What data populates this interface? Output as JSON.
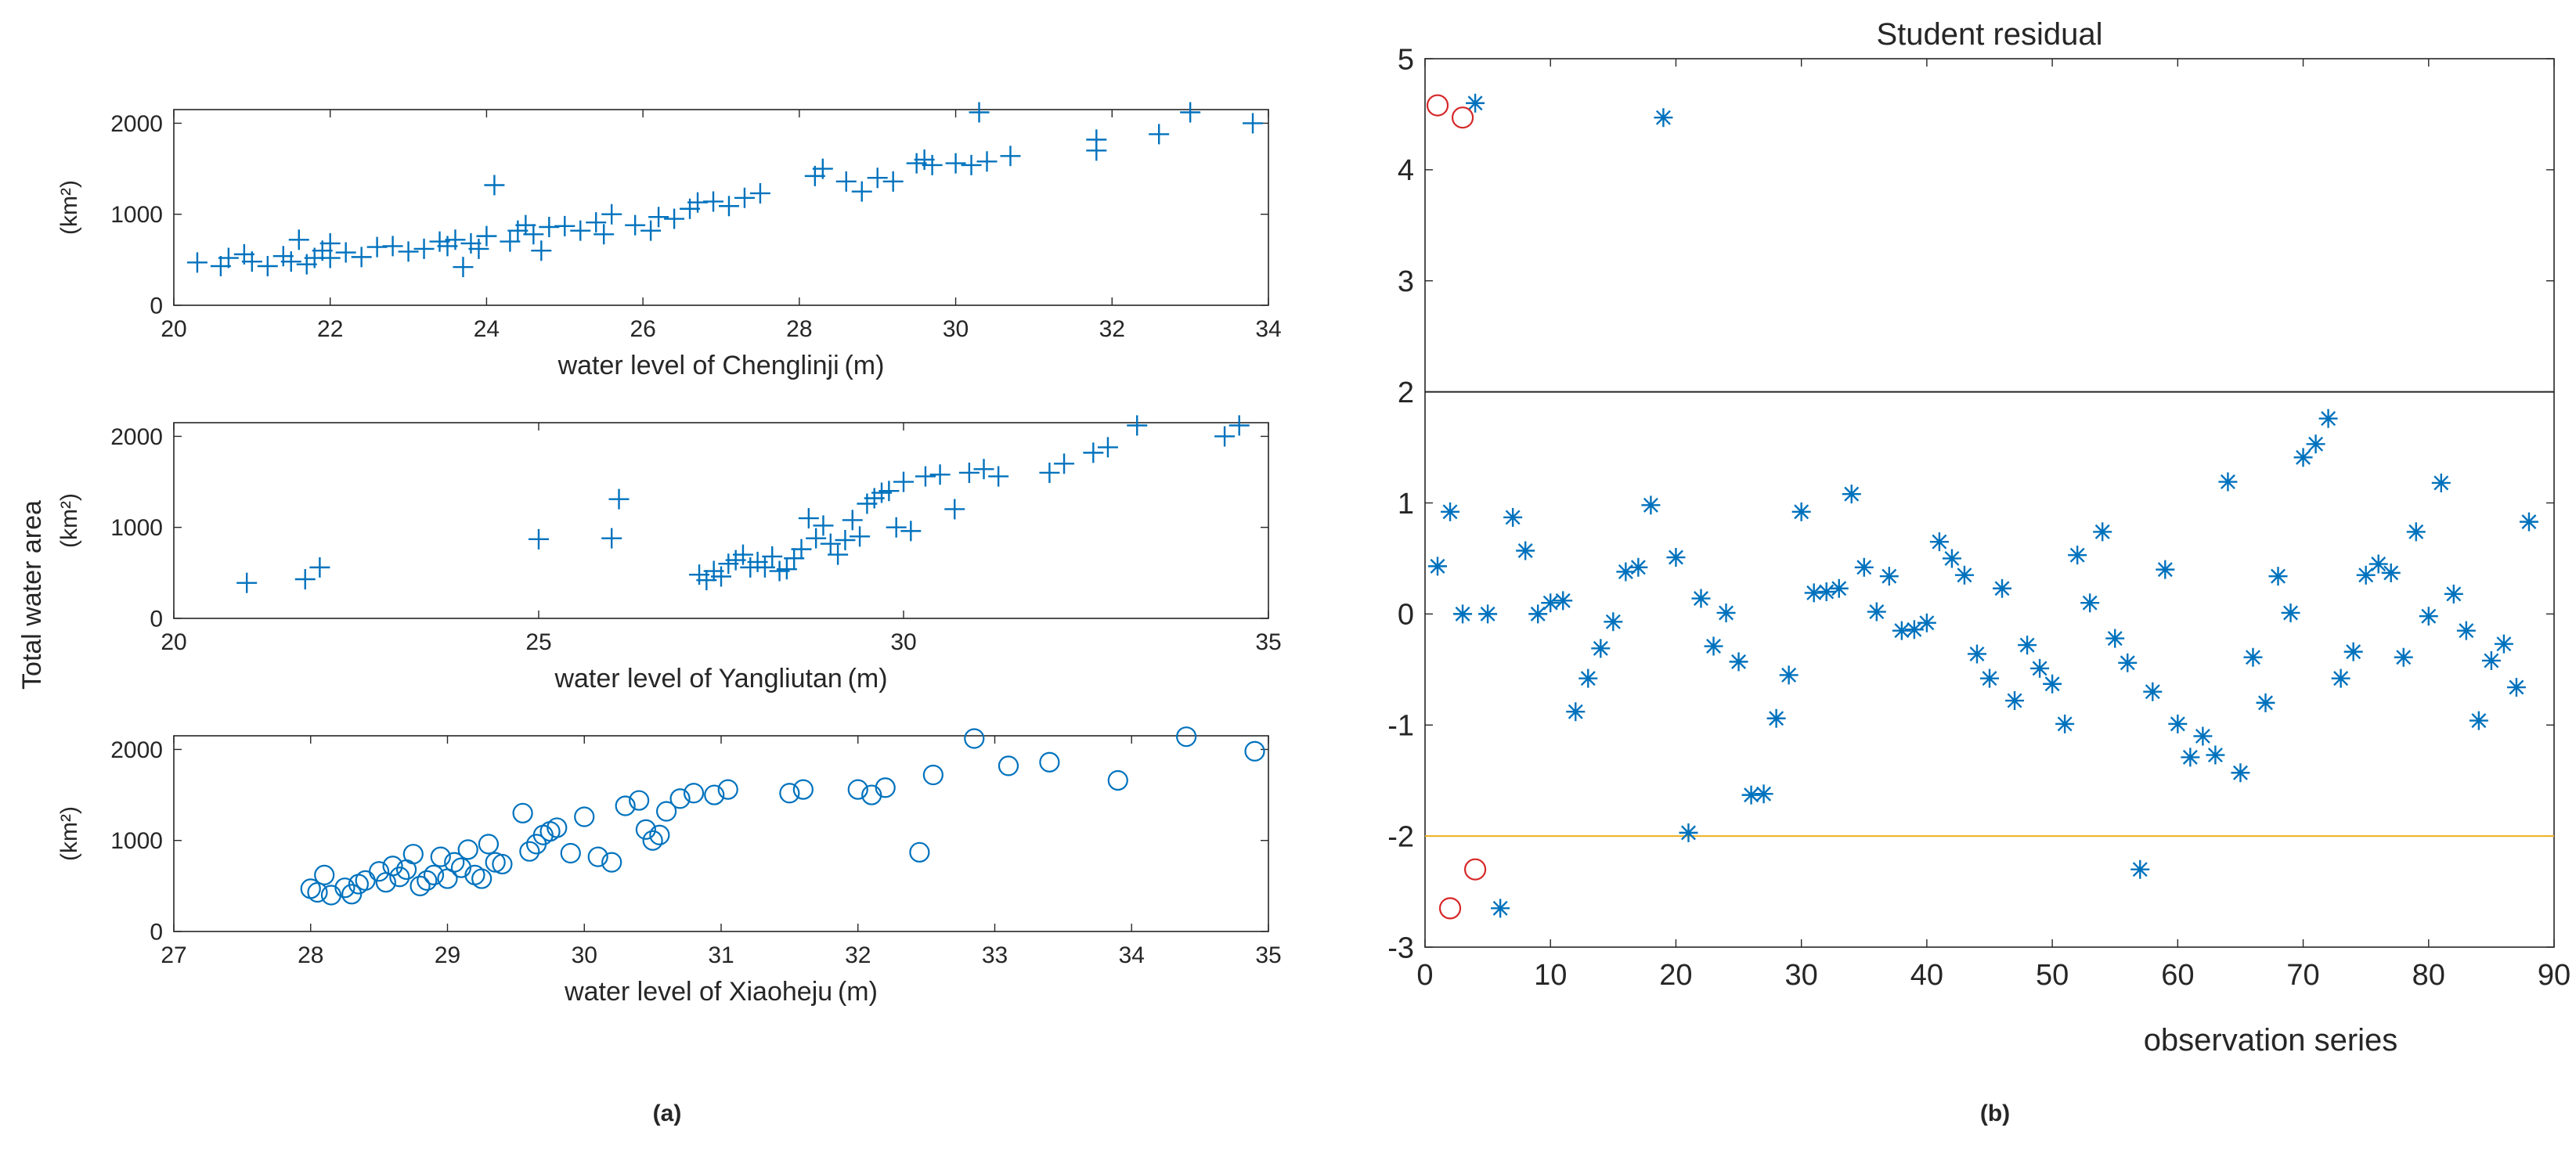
{
  "figure": {
    "panel_a_label": "(a)",
    "panel_b_label": "(b)",
    "shared_ylabel": "Total water area",
    "unit_label": "(km²)"
  },
  "colors": {
    "marker": "#0072bd",
    "outlier": "#d62728",
    "threshold_upper": "#262626",
    "threshold_lower": "#edb120",
    "axis": "#262626"
  },
  "chart_data": [
    {
      "id": "chenglinji",
      "type": "scatter",
      "marker": "plus",
      "xlabel": "water level of Chenglinji (m)",
      "ylabel": "(km²)",
      "xlim": [
        20,
        34
      ],
      "ylim": [
        0,
        2150
      ],
      "xticks": [
        20,
        22,
        24,
        26,
        28,
        30,
        32,
        34
      ],
      "yticks": [
        0,
        1000,
        2000
      ],
      "points": [
        [
          20.3,
          470
        ],
        [
          20.6,
          430
        ],
        [
          20.7,
          520
        ],
        [
          20.9,
          560
        ],
        [
          21.0,
          480
        ],
        [
          21.2,
          430
        ],
        [
          21.4,
          540
        ],
        [
          21.5,
          480
        ],
        [
          21.6,
          720
        ],
        [
          21.7,
          450
        ],
        [
          21.8,
          520
        ],
        [
          21.9,
          600
        ],
        [
          22.0,
          680
        ],
        [
          22.0,
          520
        ],
        [
          22.2,
          580
        ],
        [
          22.4,
          530
        ],
        [
          22.6,
          640
        ],
        [
          22.8,
          650
        ],
        [
          23.0,
          590
        ],
        [
          23.2,
          620
        ],
        [
          23.4,
          700
        ],
        [
          23.5,
          650
        ],
        [
          23.6,
          720
        ],
        [
          23.7,
          420
        ],
        [
          23.8,
          680
        ],
        [
          23.9,
          620
        ],
        [
          24.0,
          760
        ],
        [
          24.1,
          1320
        ],
        [
          24.3,
          700
        ],
        [
          24.4,
          820
        ],
        [
          24.5,
          880
        ],
        [
          24.6,
          780
        ],
        [
          24.7,
          600
        ],
        [
          24.8,
          860
        ],
        [
          25.0,
          870
        ],
        [
          25.2,
          820
        ],
        [
          25.4,
          910
        ],
        [
          25.5,
          780
        ],
        [
          25.6,
          1000
        ],
        [
          25.9,
          880
        ],
        [
          26.1,
          820
        ],
        [
          26.2,
          970
        ],
        [
          26.4,
          950
        ],
        [
          26.6,
          1060
        ],
        [
          26.7,
          1130
        ],
        [
          26.9,
          1140
        ],
        [
          27.1,
          1090
        ],
        [
          27.3,
          1180
        ],
        [
          27.5,
          1230
        ],
        [
          28.2,
          1420
        ],
        [
          28.3,
          1500
        ],
        [
          28.6,
          1360
        ],
        [
          28.8,
          1250
        ],
        [
          29.0,
          1400
        ],
        [
          29.2,
          1360
        ],
        [
          29.5,
          1560
        ],
        [
          29.6,
          1600
        ],
        [
          29.7,
          1540
        ],
        [
          30.0,
          1560
        ],
        [
          30.2,
          1540
        ],
        [
          30.4,
          1580
        ],
        [
          30.3,
          2120
        ],
        [
          30.7,
          1640
        ],
        [
          31.8,
          1700
        ],
        [
          31.8,
          1820
        ],
        [
          32.6,
          1880
        ],
        [
          33.0,
          2120
        ],
        [
          33.8,
          2000
        ]
      ]
    },
    {
      "id": "yangliutan",
      "type": "scatter",
      "marker": "plus",
      "xlabel": "water level of Yangliutan (m)",
      "ylabel": "(km²)",
      "xlim": [
        20,
        35
      ],
      "ylim": [
        0,
        2150
      ],
      "xticks": [
        20,
        25,
        30,
        35
      ],
      "yticks": [
        0,
        1000,
        2000
      ],
      "points": [
        [
          21.0,
          390
        ],
        [
          21.8,
          430
        ],
        [
          22.0,
          560
        ],
        [
          25.0,
          870
        ],
        [
          26.0,
          880
        ],
        [
          26.1,
          1310
        ],
        [
          27.2,
          480
        ],
        [
          27.3,
          420
        ],
        [
          27.4,
          520
        ],
        [
          27.5,
          460
        ],
        [
          27.6,
          600
        ],
        [
          27.7,
          640
        ],
        [
          27.8,
          700
        ],
        [
          27.9,
          560
        ],
        [
          28.0,
          620
        ],
        [
          28.1,
          560
        ],
        [
          28.2,
          680
        ],
        [
          28.3,
          520
        ],
        [
          28.4,
          540
        ],
        [
          28.5,
          660
        ],
        [
          28.6,
          760
        ],
        [
          28.7,
          1100
        ],
        [
          28.8,
          880
        ],
        [
          28.9,
          1020
        ],
        [
          29.0,
          820
        ],
        [
          29.1,
          700
        ],
        [
          29.2,
          860
        ],
        [
          29.3,
          1080
        ],
        [
          29.4,
          900
        ],
        [
          29.5,
          1260
        ],
        [
          29.6,
          1320
        ],
        [
          29.7,
          1380
        ],
        [
          29.8,
          1400
        ],
        [
          29.9,
          1000
        ],
        [
          30.0,
          1500
        ],
        [
          30.1,
          960
        ],
        [
          30.3,
          1560
        ],
        [
          30.5,
          1580
        ],
        [
          30.7,
          1200
        ],
        [
          30.9,
          1600
        ],
        [
          31.1,
          1640
        ],
        [
          31.3,
          1560
        ],
        [
          32.0,
          1600
        ],
        [
          32.2,
          1700
        ],
        [
          32.6,
          1820
        ],
        [
          32.8,
          1880
        ],
        [
          33.2,
          2120
        ],
        [
          34.4,
          2000
        ],
        [
          34.6,
          2120
        ]
      ]
    },
    {
      "id": "xiaoheju",
      "type": "scatter",
      "marker": "circle",
      "xlabel": "water level of Xiaoheju (m)",
      "ylabel": "(km²)",
      "xlim": [
        27,
        35
      ],
      "ylim": [
        0,
        2150
      ],
      "xticks": [
        27,
        28,
        29,
        30,
        31,
        32,
        33,
        34,
        35
      ],
      "yticks": [
        0,
        1000,
        2000
      ],
      "points": [
        [
          28.0,
          470
        ],
        [
          28.05,
          430
        ],
        [
          28.1,
          620
        ],
        [
          28.15,
          400
        ],
        [
          28.25,
          480
        ],
        [
          28.3,
          410
        ],
        [
          28.35,
          520
        ],
        [
          28.4,
          560
        ],
        [
          28.5,
          660
        ],
        [
          28.55,
          540
        ],
        [
          28.6,
          720
        ],
        [
          28.65,
          600
        ],
        [
          28.7,
          680
        ],
        [
          28.75,
          850
        ],
        [
          28.8,
          500
        ],
        [
          28.85,
          560
        ],
        [
          28.9,
          620
        ],
        [
          28.95,
          820
        ],
        [
          29.0,
          580
        ],
        [
          29.05,
          760
        ],
        [
          29.1,
          700
        ],
        [
          29.15,
          900
        ],
        [
          29.2,
          620
        ],
        [
          29.25,
          580
        ],
        [
          29.3,
          960
        ],
        [
          29.35,
          760
        ],
        [
          29.4,
          740
        ],
        [
          29.55,
          1300
        ],
        [
          29.6,
          880
        ],
        [
          29.65,
          960
        ],
        [
          29.7,
          1060
        ],
        [
          29.75,
          1100
        ],
        [
          29.8,
          1140
        ],
        [
          29.9,
          860
        ],
        [
          30.0,
          1260
        ],
        [
          30.1,
          820
        ],
        [
          30.2,
          760
        ],
        [
          30.3,
          1380
        ],
        [
          30.4,
          1440
        ],
        [
          30.45,
          1120
        ],
        [
          30.5,
          1000
        ],
        [
          30.55,
          1060
        ],
        [
          30.6,
          1320
        ],
        [
          30.7,
          1460
        ],
        [
          30.8,
          1520
        ],
        [
          30.95,
          1500
        ],
        [
          31.05,
          1560
        ],
        [
          31.5,
          1520
        ],
        [
          31.6,
          1560
        ],
        [
          32.0,
          1560
        ],
        [
          32.1,
          1500
        ],
        [
          32.2,
          1580
        ],
        [
          32.45,
          870
        ],
        [
          32.55,
          1720
        ],
        [
          32.85,
          2120
        ],
        [
          33.1,
          1820
        ],
        [
          33.4,
          1860
        ],
        [
          33.9,
          1660
        ],
        [
          34.4,
          2140
        ],
        [
          34.9,
          1980
        ]
      ]
    },
    {
      "id": "residual",
      "type": "scatter",
      "marker": "asterisk",
      "title": "Student residual",
      "xlabel": "observation series",
      "ylabel": "",
      "xlim": [
        0,
        90
      ],
      "ylim": [
        -3,
        5
      ],
      "xticks": [
        0,
        10,
        20,
        30,
        40,
        50,
        60,
        70,
        80,
        90
      ],
      "yticks": [
        -3,
        -2,
        -1,
        0,
        1,
        2,
        3,
        4,
        5
      ],
      "thresholds": [
        2,
        -2
      ],
      "points": [
        [
          1,
          0.43
        ],
        [
          2,
          0.92
        ],
        [
          3,
          0.0
        ],
        [
          4,
          4.6
        ],
        [
          5,
          0.0
        ],
        [
          6,
          -2.65
        ],
        [
          7,
          0.87
        ],
        [
          8,
          0.57
        ],
        [
          9,
          0.0
        ],
        [
          10,
          0.1
        ],
        [
          11,
          0.12
        ],
        [
          12,
          -0.88
        ],
        [
          13,
          -0.58
        ],
        [
          14,
          -0.31
        ],
        [
          15,
          -0.07
        ],
        [
          16,
          0.38
        ],
        [
          17,
          0.42
        ],
        [
          18,
          0.98
        ],
        [
          19,
          4.47
        ],
        [
          20,
          0.51
        ],
        [
          21,
          -1.97
        ],
        [
          22,
          0.14
        ],
        [
          23,
          -0.29
        ],
        [
          24,
          0.01
        ],
        [
          25,
          -0.43
        ],
        [
          26,
          -1.63
        ],
        [
          27,
          -1.62
        ],
        [
          28,
          -0.94
        ],
        [
          29,
          -0.55
        ],
        [
          30,
          0.92
        ],
        [
          31,
          0.19
        ],
        [
          32,
          0.2
        ],
        [
          33,
          0.23
        ],
        [
          34,
          1.08
        ],
        [
          35,
          0.42
        ],
        [
          36,
          0.02
        ],
        [
          37,
          0.34
        ],
        [
          38,
          -0.15
        ],
        [
          39,
          -0.14
        ],
        [
          40,
          -0.08
        ],
        [
          41,
          0.65
        ],
        [
          42,
          0.5
        ],
        [
          43,
          0.35
        ],
        [
          44,
          -0.36
        ],
        [
          45,
          -0.58
        ],
        [
          46,
          0.23
        ],
        [
          47,
          -0.78
        ],
        [
          48,
          -0.28
        ],
        [
          49,
          -0.49
        ],
        [
          50,
          -0.63
        ],
        [
          51,
          -0.99
        ],
        [
          52,
          0.53
        ],
        [
          53,
          0.1
        ],
        [
          54,
          0.74
        ],
        [
          55,
          -0.22
        ],
        [
          56,
          -0.44
        ],
        [
          57,
          -2.3
        ],
        [
          58,
          -0.7
        ],
        [
          59,
          0.4
        ],
        [
          60,
          -0.99
        ],
        [
          61,
          -1.29
        ],
        [
          62,
          -1.1
        ],
        [
          63,
          -1.27
        ],
        [
          64,
          1.19
        ],
        [
          65,
          -1.43
        ],
        [
          66,
          -0.39
        ],
        [
          67,
          -0.8
        ],
        [
          68,
          0.34
        ],
        [
          69,
          0.01
        ],
        [
          70,
          1.41
        ],
        [
          71,
          1.53
        ],
        [
          72,
          1.76
        ],
        [
          73,
          -0.58
        ],
        [
          74,
          -0.34
        ],
        [
          75,
          0.35
        ],
        [
          76,
          0.45
        ],
        [
          77,
          0.37
        ],
        [
          78,
          -0.39
        ],
        [
          79,
          0.74
        ],
        [
          80,
          -0.02
        ],
        [
          81,
          1.18
        ],
        [
          82,
          0.18
        ],
        [
          83,
          -0.15
        ],
        [
          84,
          -0.96
        ],
        [
          85,
          -0.42
        ],
        [
          86,
          -0.27
        ],
        [
          87,
          -0.66
        ],
        [
          88,
          0.83
        ]
      ],
      "outliers": [
        [
          1,
          4.58
        ],
        [
          3,
          4.47
        ],
        [
          2,
          -2.65
        ],
        [
          4,
          -2.3
        ]
      ]
    }
  ]
}
